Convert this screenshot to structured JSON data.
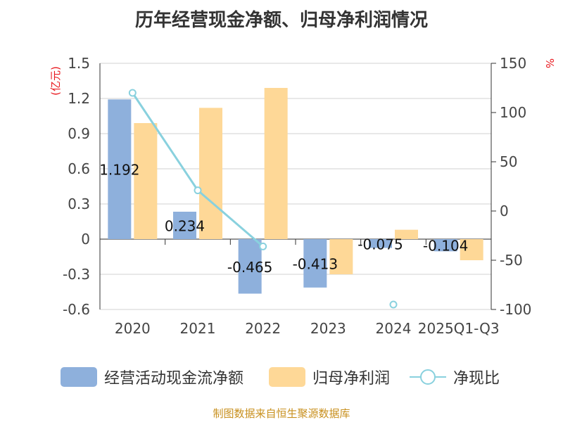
{
  "chart_data": {
    "type": "bar",
    "title": "历年经营现金净额、归母净利润情况",
    "categories": [
      "2020",
      "2021",
      "2022",
      "2023",
      "2024",
      "2025Q1-Q3"
    ],
    "series": [
      {
        "name": "经营活动现金流净额",
        "kind": "bar",
        "axis": "left",
        "color": "#8eb0dc",
        "values": [
          1.192,
          0.234,
          -0.465,
          -0.413,
          -0.075,
          -0.104
        ],
        "labels": [
          "1.192",
          "0.234",
          "-0.465",
          "-0.413",
          "-0.075",
          "-0.104"
        ]
      },
      {
        "name": "归母净利润",
        "kind": "bar",
        "axis": "left",
        "color": "#fed897",
        "values": [
          0.99,
          1.12,
          1.29,
          -0.3,
          0.08,
          -0.18
        ]
      },
      {
        "name": "净现比",
        "kind": "line",
        "axis": "right",
        "color": "#89d1de",
        "values": [
          120,
          21,
          -36,
          null,
          -95,
          null
        ]
      }
    ],
    "ylabel_left": "(亿元)",
    "ylabel_right": "%",
    "ylim_left": [
      -0.6,
      1.5
    ],
    "ylim_right": [
      -100,
      150
    ],
    "yticks_left": [
      1.5,
      1.2,
      0.9,
      0.6,
      0.3,
      0,
      -0.3,
      -0.6
    ],
    "ytick_labels_left": [
      "1.5",
      "1.2",
      "0.9",
      "0.6",
      "0.3",
      "0",
      "-0.3",
      "-0.6"
    ],
    "yticks_right": [
      150,
      100,
      50,
      0,
      -50,
      -100
    ],
    "ytick_labels_right": [
      "150",
      "100",
      "50",
      "0",
      "-50",
      "-100"
    ],
    "grid": true,
    "legend": "bottom",
    "source": "制图数据来自恒生聚源数据库"
  },
  "colors": {
    "axis_label_red": "#e8161c",
    "source_text": "#c8901e",
    "text": "#333333"
  }
}
